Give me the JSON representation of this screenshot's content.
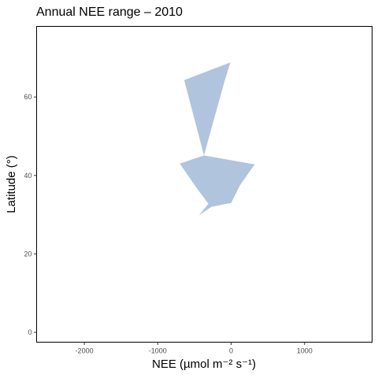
{
  "chart_data": {
    "type": "area",
    "title": "Annual NEE range – 2010",
    "xlabel": "NEE (µmol m⁻² s⁻¹)",
    "ylabel": "Latitude (°)",
    "xlim": [
      -2650,
      1920
    ],
    "ylim": [
      -2.5,
      78
    ],
    "x_ticks": [
      -2000,
      -1000,
      0,
      1000
    ],
    "x_tick_labels": [
      "-2000",
      "-1000",
      "0",
      "1000"
    ],
    "y_ticks": [
      0,
      20,
      40,
      60
    ],
    "y_tick_labels": [
      "0",
      "20",
      "40",
      "60"
    ],
    "grid": false,
    "fill_color": "#b0c4de",
    "series": [
      {
        "points": [
          [
            -640,
            64.3
          ],
          [
            -10,
            68.8
          ],
          [
            -90,
            64.0
          ],
          [
            -370,
            45.1
          ]
        ]
      },
      {
        "points": [
          [
            -700,
            43.0
          ],
          [
            -370,
            45.1
          ],
          [
            320,
            42.8
          ],
          [
            120,
            37.5
          ],
          [
            0,
            33.0
          ],
          [
            -270,
            32.0
          ],
          [
            -440,
            29.8
          ],
          [
            -310,
            32.8
          ],
          [
            -470,
            36.8
          ]
        ]
      }
    ]
  }
}
